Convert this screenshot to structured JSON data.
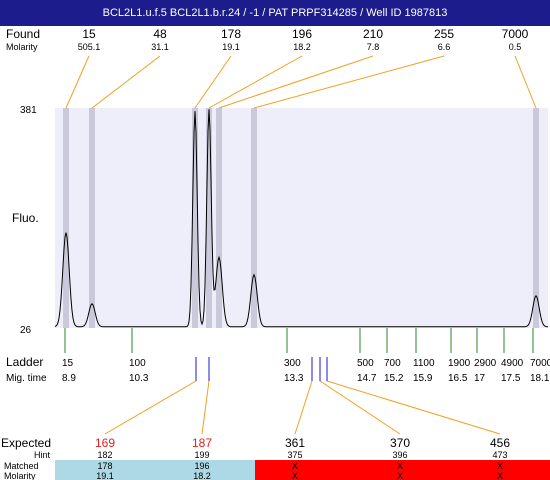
{
  "title": "BCL2L1.u.f.5  BCL2L1.b.r.24 / -1 / PAT PRPF314285 / Well ID 1987813",
  "labels": {
    "found": "Found",
    "molarity": "Molarity",
    "fluo": "Fluo.",
    "ladder": "Ladder",
    "mig_time": "Mig. time",
    "expected": "Expected",
    "hint": "Hint",
    "matched": "Matched",
    "molarity_bottom": "Molarity"
  },
  "colors": {
    "title_bg": "#1c1c8c",
    "plot_bg": "#eeeefa",
    "marker_band": "#c9c9d9",
    "connector": "#f0a020",
    "ladder_tick": "#2a8a2a",
    "found_tick": "#1a1acc",
    "expected_unmatched": "#dd2222",
    "matched_bg": "#add8e6",
    "unmatched_bg": "#ff0000"
  },
  "chart_data": {
    "type": "line",
    "title": "BCL2L1.u.f.5  BCL2L1.b.r.24 / -1 / PAT PRPF314285 / Well ID 1987813",
    "ylabel": "Fluo.",
    "y_ticks": [
      "381",
      "26"
    ],
    "ylim": [
      26,
      381
    ],
    "x_is_ladder_scale": true,
    "found_peaks": [
      {
        "size": "15",
        "molarity": "505.1",
        "height": 180
      },
      {
        "size": "48",
        "molarity": "31.1",
        "height": 65
      },
      {
        "size": "178",
        "molarity": "19.1",
        "height": 376
      },
      {
        "size": "196",
        "molarity": "18.2",
        "height": 378
      },
      {
        "size": "210",
        "molarity": "7.8",
        "height": 140
      },
      {
        "size": "255",
        "molarity": "6.6",
        "height": 112
      },
      {
        "size": "7000",
        "molarity": "0.5",
        "height": 78
      }
    ],
    "ladder": [
      {
        "size": "15",
        "mig_time": "8.9"
      },
      {
        "size": "100",
        "mig_time": "10.3"
      },
      {
        "size": "300",
        "mig_time": "13.3"
      },
      {
        "size": "500",
        "mig_time": "14.7"
      },
      {
        "size": "700",
        "mig_time": "15.2"
      },
      {
        "size": "1100",
        "mig_time": "15.9"
      },
      {
        "size": "1900",
        "mig_time": "16.5"
      },
      {
        "size": "2900",
        "mig_time": "17"
      },
      {
        "size": "4900",
        "mig_time": "17.5"
      },
      {
        "size": "7000",
        "mig_time": "18.1"
      }
    ],
    "expected": [
      {
        "expected": "169",
        "hint": "182",
        "matched": "178",
        "molarity": "19.1",
        "is_matched": true
      },
      {
        "expected": "187",
        "hint": "199",
        "matched": "196",
        "molarity": "18.2",
        "is_matched": true
      },
      {
        "expected": "361",
        "hint": "375",
        "matched": "X",
        "molarity": "X",
        "is_matched": false
      },
      {
        "expected": "370",
        "hint": "396",
        "matched": "X",
        "molarity": "X",
        "is_matched": false
      },
      {
        "expected": "456",
        "hint": "473",
        "matched": "X",
        "molarity": "X",
        "is_matched": false
      }
    ]
  }
}
